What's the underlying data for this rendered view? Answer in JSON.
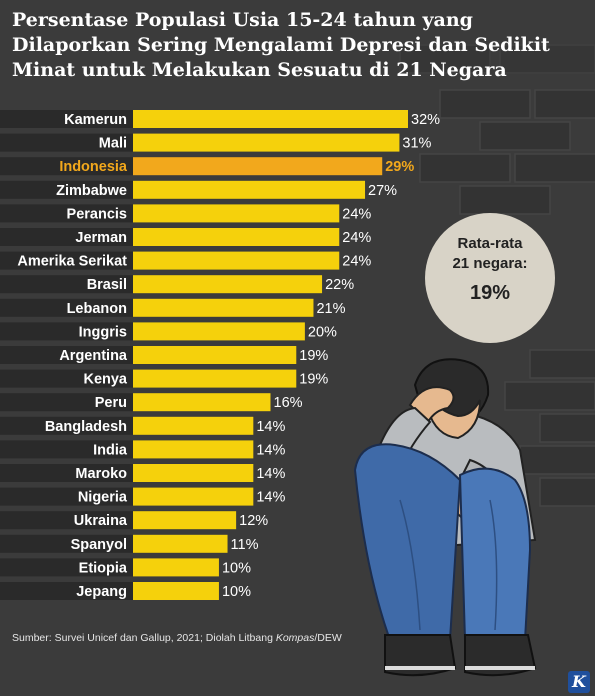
{
  "title": "Persentase Populasi Usia 15-24 tahun yang Dilaporkan Sering Mengalami Depresi dan Sedikit Minat untuk Melakukan Sesuatu di 21 Negara",
  "chart_data": {
    "type": "bar",
    "orientation": "horizontal",
    "categories": [
      "Kamerun",
      "Mali",
      "Indonesia",
      "Zimbabwe",
      "Perancis",
      "Jerman",
      "Amerika Serikat",
      "Brasil",
      "Lebanon",
      "Inggris",
      "Argentina",
      "Kenya",
      "Peru",
      "Bangladesh",
      "India",
      "Maroko",
      "Nigeria",
      "Ukraina",
      "Spanyol",
      "Etiopia",
      "Jepang"
    ],
    "values": [
      32,
      31,
      29,
      27,
      24,
      24,
      24,
      22,
      21,
      20,
      19,
      19,
      16,
      14,
      14,
      14,
      14,
      12,
      11,
      10,
      10
    ],
    "value_labels": [
      "32%",
      "31%",
      "29%",
      "27%",
      "24%",
      "24%",
      "24%",
      "22%",
      "21%",
      "20%",
      "19%",
      "19%",
      "16%",
      "14%",
      "14%",
      "14%",
      "14%",
      "12%",
      "11%",
      "10%",
      "10%"
    ],
    "highlight": "Indonesia",
    "unit": "%",
    "xlim": [
      0,
      32
    ],
    "grid": false,
    "colors": {
      "bar": "#f5d10c",
      "highlight_bar": "#f2a81c",
      "highlight_text": "#f2a81c",
      "label_band": "#2a2a2a"
    }
  },
  "average": {
    "line1": "Rata-rata",
    "line2": "21 negara:",
    "value": "19%"
  },
  "source": {
    "prefix": "Sumber: Survei Unicef dan Gallup, 2021; Diolah Litbang ",
    "italic": "Kompas",
    "suffix": "/DEW"
  },
  "logo": {
    "letter": "K",
    "color": "#1f4f9c"
  }
}
